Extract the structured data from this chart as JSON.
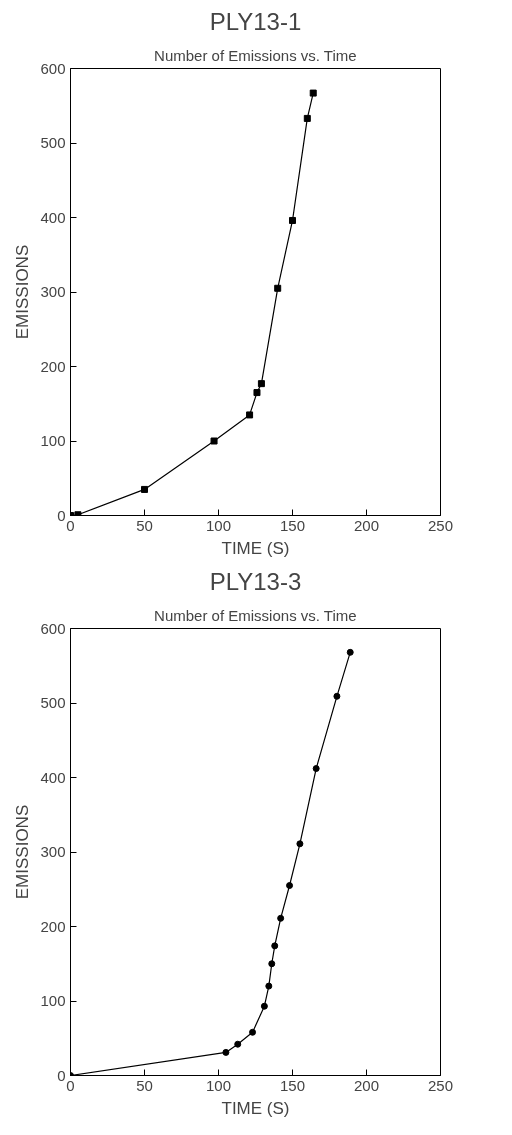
{
  "chart_data": [
    {
      "type": "line",
      "title": "PLY13-1",
      "subtitle": "Number of Emissions vs. Time",
      "xlabel": "TIME (S)",
      "ylabel": "EMISSIONS",
      "x": [
        0,
        5,
        50,
        97,
        121,
        126,
        129,
        140,
        150,
        160,
        164
      ],
      "series": [
        {
          "color": "#000000",
          "values": [
            0,
            1,
            35,
            100,
            135,
            165,
            177,
            305,
            396,
            533,
            567
          ]
        }
      ],
      "xlim": [
        0,
        250
      ],
      "ylim": [
        0,
        600
      ],
      "xticks": [
        0,
        50,
        100,
        150,
        200,
        250
      ],
      "yticks": [
        0,
        100,
        200,
        300,
        400,
        500,
        600
      ],
      "marker": "square",
      "line_style": "solid",
      "grid": false
    },
    {
      "type": "line",
      "title": "PLY13-3",
      "subtitle": "Number of Emissions vs. Time",
      "xlabel": "TIME (S)",
      "ylabel": "EMISSIONS",
      "x": [
        0,
        105,
        113,
        123,
        131,
        134,
        136,
        138,
        142,
        148,
        155,
        166,
        180,
        189
      ],
      "series": [
        {
          "color": "#000000",
          "values": [
            0,
            31,
            42,
            58,
            93,
            120,
            150,
            174,
            211,
            255,
            311,
            412,
            509,
            568
          ]
        }
      ],
      "xlim": [
        0,
        250
      ],
      "ylim": [
        0,
        600
      ],
      "xticks": [
        0,
        50,
        100,
        150,
        200,
        250
      ],
      "yticks": [
        0,
        100,
        200,
        300,
        400,
        500,
        600
      ],
      "marker": "circle",
      "line_style": "solid",
      "grid": false
    }
  ]
}
